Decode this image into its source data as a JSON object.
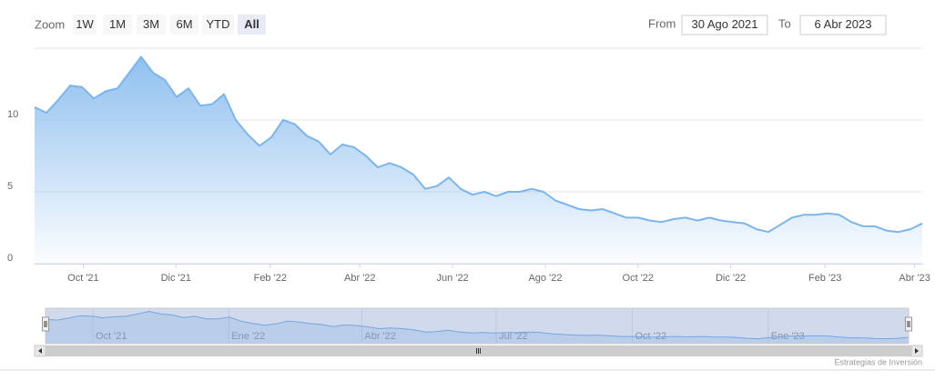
{
  "chart_data": {
    "type": "area",
    "zoom_label": "Zoom",
    "zoom_buttons": [
      "1W",
      "1M",
      "3M",
      "6M",
      "YTD",
      "All"
    ],
    "active_button": "All",
    "from_label": "From",
    "from": "30 Ago 2021",
    "to_label": "To",
    "to": "6 Abr 2023",
    "color": "#7cb5ec",
    "xlim": [
      "2021-08-30",
      "2023-04-06"
    ],
    "xticks": [
      {
        "value": "2021-10",
        "label": "Oct '21"
      },
      {
        "value": "2021-12",
        "label": "Dic '21"
      },
      {
        "value": "2022-02",
        "label": "Feb '22"
      },
      {
        "value": "2022-04",
        "label": "Abr '22"
      },
      {
        "value": "2022-06",
        "label": "Jun '22"
      },
      {
        "value": "2022-08",
        "label": "Ago '22"
      },
      {
        "value": "2022-10",
        "label": "Oct '22"
      },
      {
        "value": "2022-12",
        "label": "Dic '22"
      },
      {
        "value": "2023-02",
        "label": "Feb '23"
      },
      {
        "value": "2023-04",
        "label": "Abr '23"
      }
    ],
    "ylim": [
      0,
      15
    ],
    "yticks": [
      0,
      5,
      10
    ],
    "grid": true,
    "values": [
      10.9,
      10.5,
      11.4,
      12.4,
      12.3,
      11.5,
      12.0,
      12.2,
      13.3,
      14.4,
      13.3,
      12.8,
      11.6,
      12.2,
      11.0,
      11.1,
      11.8,
      10.0,
      9.0,
      8.2,
      8.8,
      10.0,
      9.7,
      8.9,
      8.5,
      7.6,
      8.3,
      8.1,
      7.5,
      6.7,
      7.0,
      6.7,
      6.2,
      5.2,
      5.4,
      6.0,
      5.2,
      4.8,
      5.0,
      4.7,
      5.0,
      5.0,
      5.2,
      5.0,
      4.4,
      4.1,
      3.8,
      3.7,
      3.8,
      3.5,
      3.2,
      3.2,
      3.0,
      2.9,
      3.1,
      3.2,
      3.0,
      3.2,
      3.0,
      2.9,
      2.8,
      2.4,
      2.2,
      2.7,
      3.2,
      3.4,
      3.4,
      3.5,
      3.4,
      2.9,
      2.6,
      2.6,
      2.3,
      2.2,
      2.4,
      2.8
    ],
    "navigator": {
      "xticks": [
        {
          "value": "2021-10",
          "label": "Oct '21"
        },
        {
          "value": "2022-01",
          "label": "Ene '22"
        },
        {
          "value": "2022-04",
          "label": "Abr '22"
        },
        {
          "value": "2022-07",
          "label": "Jul '22"
        },
        {
          "value": "2022-10",
          "label": "Oct '22"
        },
        {
          "value": "2023-01",
          "label": "Ene '23"
        }
      ]
    },
    "credit": "Estrategias de Inversión"
  }
}
